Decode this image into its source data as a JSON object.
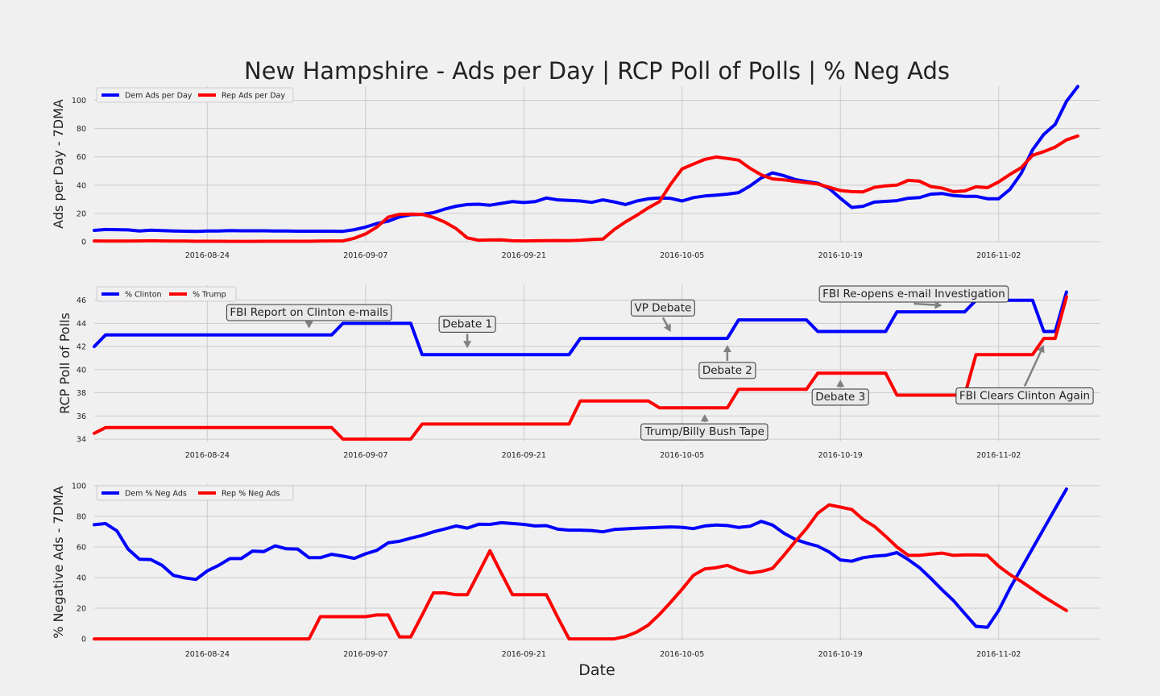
{
  "title": "New Hampshire - Ads per Day | RCP Poll of Polls | % Neg Ads",
  "colors": {
    "dem": "#0000ff",
    "rep": "#ff0000",
    "grid": "#cbcbcb",
    "arrow": "#808080",
    "background": "#f0f0f0"
  },
  "chart_data": [
    {
      "type": "line",
      "ylabel": "Ads per Day - 7DMA",
      "xlabel": "",
      "x_start": "2016-08-14",
      "x_range": [
        "2016-08-14",
        "2016-11-11"
      ],
      "x_ticks": [
        "2016-08-24",
        "2016-09-07",
        "2016-09-21",
        "2016-10-05",
        "2016-10-19",
        "2016-11-02"
      ],
      "ylim": [
        0,
        110
      ],
      "y_ticks": [
        0,
        20,
        40,
        60,
        80,
        100
      ],
      "grid": true,
      "legend_position": "top-left",
      "series": [
        {
          "name": "Dem Ads per Day",
          "color": "#0000ff",
          "values": [
            8,
            8.6,
            8.5,
            8.3,
            7.6,
            8.1,
            7.8,
            7.5,
            7.4,
            7.3,
            7.5,
            7.6,
            7.8,
            7.7,
            7.7,
            7.7,
            7.6,
            7.5,
            7.4,
            7.4,
            7.4,
            7.4,
            7.3,
            8.5,
            10.3,
            12.8,
            14.5,
            17.5,
            19.1,
            19.3,
            20.5,
            23,
            25.1,
            26.3,
            26.5,
            25.8,
            27.1,
            28.4,
            27.7,
            28.3,
            30.9,
            29.6,
            29.2,
            28.8,
            27.8,
            29.6,
            28.1,
            26.3,
            28.8,
            30.3,
            30.9,
            30.6,
            28.8,
            31.2,
            32.3,
            32.9,
            33.6,
            34.7,
            39.4,
            45.1,
            48.7,
            46.7,
            44,
            42.6,
            41.3,
            37.7,
            30.7,
            24.2,
            25,
            28,
            28.5,
            29,
            30.7,
            31.2,
            33.6,
            34.1,
            32.6,
            32.1,
            32.1,
            30.4,
            30.4,
            37,
            48.4,
            65,
            76,
            83,
            99.3,
            109.8
          ]
        },
        {
          "name": "Rep Ads per Day",
          "color": "#ff0000",
          "values": [
            0.5,
            0.4,
            0.4,
            0.4,
            0.5,
            0.6,
            0.5,
            0.4,
            0.4,
            0.3,
            0.3,
            0.3,
            0.2,
            0.2,
            0.2,
            0.3,
            0.3,
            0.3,
            0.3,
            0.3,
            0.4,
            0.5,
            0.5,
            2.4,
            5.5,
            10.3,
            17.3,
            19.4,
            19.5,
            19.3,
            17.2,
            13.9,
            9.3,
            2.7,
            1,
            1.2,
            1.3,
            0.6,
            0.5,
            0.6,
            0.7,
            0.8,
            0.7,
            1,
            1.6,
            1.8,
            8.6,
            14,
            18.7,
            23.9,
            28.4,
            40.8,
            51.5,
            54.9,
            58.2,
            59.9,
            58.9,
            57.7,
            51.9,
            47.3,
            44.4,
            43.8,
            42.7,
            41.8,
            40.8,
            38.5,
            36.2,
            35.4,
            35.2,
            38.4,
            39.5,
            40,
            43.4,
            42.8,
            39,
            37.9,
            35.4,
            35.9,
            38.8,
            38.2,
            42.3,
            47.6,
            52.4,
            61.1,
            63.7,
            66.9,
            72,
            74.8
          ]
        }
      ]
    },
    {
      "type": "line",
      "ylabel": "RCP Poll of Polls",
      "xlabel": "",
      "x_start": "2016-08-14",
      "x_range": [
        "2016-08-14",
        "2016-11-11"
      ],
      "x_ticks": [
        "2016-08-24",
        "2016-09-07",
        "2016-09-21",
        "2016-10-05",
        "2016-10-19",
        "2016-11-02"
      ],
      "ylim": [
        33.8,
        47.3
      ],
      "y_ticks": [
        34,
        36,
        38,
        40,
        42,
        44,
        46
      ],
      "grid": true,
      "legend_position": "top-left",
      "series": [
        {
          "name": "% Clinton",
          "color": "#0000ff",
          "points": [
            [
              0,
              42
            ],
            [
              1,
              43
            ],
            [
              21,
              43
            ],
            [
              22,
              44
            ],
            [
              28,
              44
            ],
            [
              29,
              41.3
            ],
            [
              42,
              41.3
            ],
            [
              43,
              42.7
            ],
            [
              56,
              42.7
            ],
            [
              57,
              44.3
            ],
            [
              63,
              44.3
            ],
            [
              64,
              43.3
            ],
            [
              70,
              43.3
            ],
            [
              71,
              45
            ],
            [
              77,
              45
            ],
            [
              78,
              46
            ],
            [
              83,
              46
            ],
            [
              84,
              43.3
            ],
            [
              85,
              43.3
            ],
            [
              86,
              46.7
            ]
          ]
        },
        {
          "name": "% Trump",
          "color": "#ff0000",
          "points": [
            [
              0,
              34.5
            ],
            [
              1,
              35
            ],
            [
              21,
              35
            ],
            [
              22,
              34
            ],
            [
              28,
              34
            ],
            [
              29,
              35.3
            ],
            [
              42,
              35.3
            ],
            [
              43,
              37.3
            ],
            [
              49,
              37.3
            ],
            [
              50,
              36.7
            ],
            [
              56,
              36.7
            ],
            [
              57,
              38.3
            ],
            [
              63,
              38.3
            ],
            [
              64,
              39.7
            ],
            [
              70,
              39.7
            ],
            [
              71,
              37.8
            ],
            [
              77,
              37.8
            ],
            [
              78,
              41.3
            ],
            [
              83,
              41.3
            ],
            [
              84,
              42.7
            ],
            [
              85,
              42.7
            ],
            [
              86,
              46.3
            ]
          ]
        }
      ],
      "annotations": [
        {
          "text": "FBI Report on Clinton e-mails",
          "arrow_x": 19,
          "arrow_y": 43,
          "label_y": 45.0
        },
        {
          "text": "Debate 1",
          "arrow_x": 33,
          "arrow_y": 41.3,
          "label_y": 44.0
        },
        {
          "text": "VP Debate",
          "arrow_x": 51,
          "arrow_y": 42.7,
          "label_y": 45.4
        },
        {
          "text": "Debate 2",
          "arrow_x": 56,
          "arrow_y": 42.7,
          "label_y": 40.0
        },
        {
          "text": "Trump/Billy Bush Tape",
          "arrow_x": 54,
          "arrow_y": 36.7,
          "label_y": 34.7
        },
        {
          "text": "Debate 3",
          "arrow_x": 66,
          "arrow_y": 39.7,
          "label_y": 37.7
        },
        {
          "text": "FBI Re-opens e-mail Investigation",
          "arrow_x": 75,
          "arrow_y": 45,
          "label_y": 46.6
        },
        {
          "text": "FBI Clears Clinton Again",
          "arrow_x": 84,
          "arrow_y": 42.7,
          "label_y": 37.8
        }
      ]
    },
    {
      "type": "line",
      "ylabel": "% Negative Ads - 7DMA",
      "xlabel": "Date",
      "x_start": "2016-08-14",
      "x_range": [
        "2016-08-14",
        "2016-11-11"
      ],
      "x_ticks": [
        "2016-08-24",
        "2016-09-07",
        "2016-09-21",
        "2016-10-05",
        "2016-10-19",
        "2016-11-02"
      ],
      "ylim": [
        -1,
        101
      ],
      "y_ticks": [
        0,
        20,
        40,
        60,
        80,
        100
      ],
      "grid": true,
      "legend_position": "top-left",
      "series": [
        {
          "name": "Dem % Neg Ads",
          "color": "#0000ff",
          "values": [
            74.5,
            75.3,
            70.5,
            58.5,
            52,
            51.8,
            48,
            41.5,
            39.8,
            38.8,
            44.4,
            48,
            52.4,
            52.4,
            57.3,
            57,
            60.7,
            58.8,
            58.6,
            53,
            53,
            55.2,
            54,
            52.6,
            55.5,
            57.8,
            62.7,
            63.7,
            65.7,
            67.5,
            69.9,
            71.7,
            73.7,
            72.3,
            74.8,
            74.7,
            75.8,
            75.3,
            74.7,
            73.7,
            73.9,
            71.6,
            71,
            71,
            70.7,
            69.9,
            71.4,
            71.8,
            72.2,
            72.5,
            72.8,
            73.1,
            72.8,
            72,
            73.7,
            74.3,
            74,
            72.7,
            73.5,
            76.7,
            74.3,
            69,
            65,
            62.5,
            60.5,
            56.8,
            51.5,
            50.7,
            53,
            54,
            54.5,
            56.3,
            51.8,
            46.5,
            39.5,
            32,
            25,
            16.5,
            8.2,
            7.5,
            18.5,
            33,
            46,
            59,
            72,
            85,
            97.8
          ]
        },
        {
          "name": "Rep % Neg Ads",
          "color": "#ff0000",
          "values": [
            0,
            0,
            0,
            0,
            0,
            0,
            0,
            0,
            0,
            0,
            0,
            0,
            0,
            0,
            0,
            0,
            0,
            0,
            0,
            0,
            14.5,
            14.5,
            14.5,
            14.5,
            14.5,
            15.6,
            15.6,
            1.3,
            1.3,
            15.5,
            30,
            30,
            28.8,
            28.8,
            43,
            57.5,
            43,
            28.8,
            28.8,
            28.8,
            28.8,
            14,
            0,
            0,
            0,
            0,
            0,
            1.5,
            4.5,
            9,
            16,
            24,
            32.5,
            41.5,
            45.7,
            46.5,
            48,
            45,
            43,
            44,
            46,
            54.5,
            63.5,
            72,
            82,
            87.5,
            86,
            84.5,
            78,
            73.5,
            67,
            60,
            54.5,
            54.5,
            55.3,
            56,
            54.5,
            54.8,
            54.8,
            54.5,
            47.5,
            42,
            37.5,
            32.5,
            27.5,
            23,
            18.5
          ]
        }
      ]
    }
  ]
}
